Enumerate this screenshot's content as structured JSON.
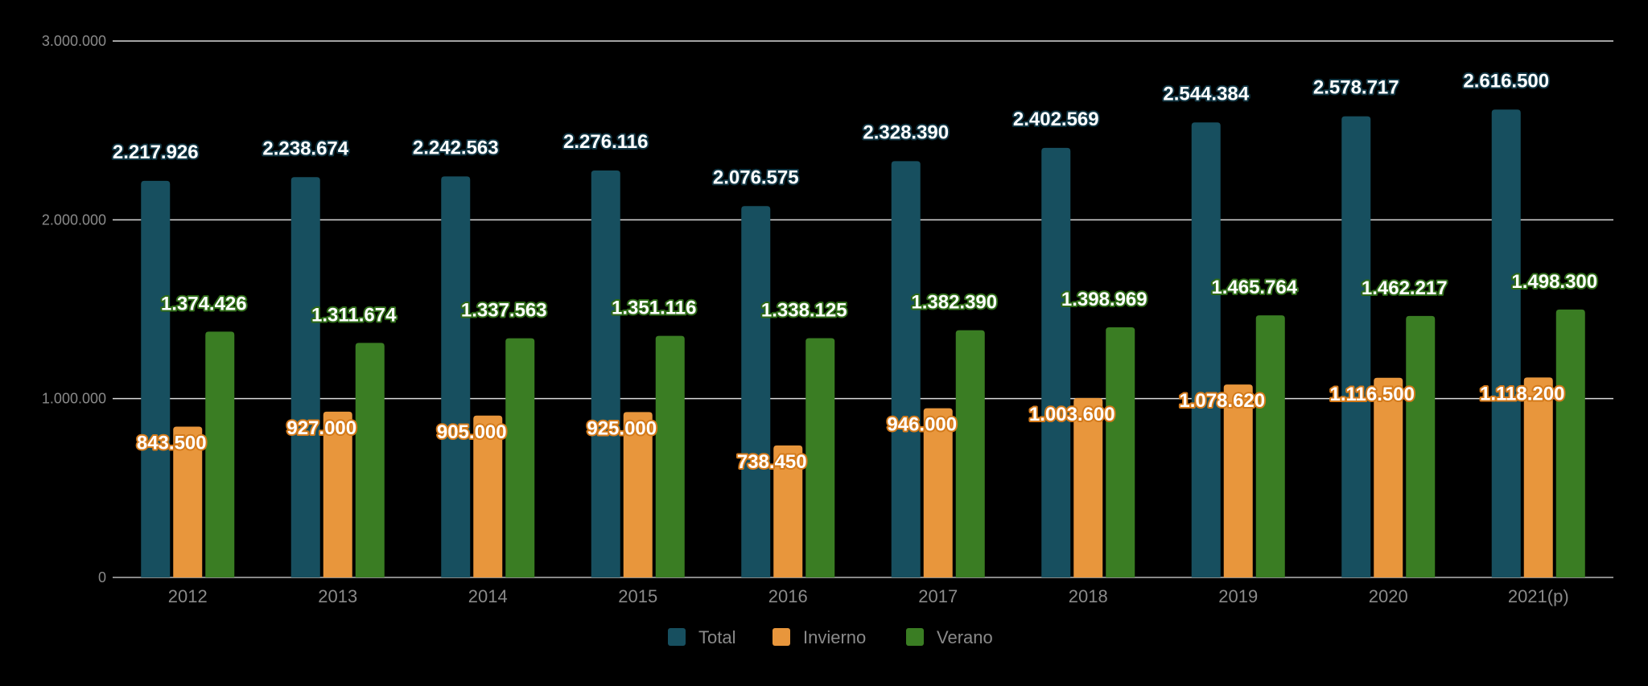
{
  "chart_data": {
    "type": "bar",
    "title": "",
    "xlabel": "",
    "ylabel": "",
    "ylim": [
      0,
      3000000
    ],
    "yticks": [
      0,
      1000000,
      2000000,
      3000000
    ],
    "ytick_labels": [
      "0",
      "1.000.000",
      "2.000.000",
      "3.000.000"
    ],
    "grid": true,
    "legend_position": "bottom",
    "categories": [
      "2012",
      "2013",
      "2014",
      "2015",
      "2016",
      "2017",
      "2018",
      "2019",
      "2020",
      "2021(p)"
    ],
    "series": [
      {
        "name": "Total",
        "color": "#174f5f",
        "label_fill": "#ffffff",
        "label_stroke": "#0f3340",
        "values": [
          2217926,
          2238674,
          2242563,
          2276116,
          2076575,
          2328390,
          2402569,
          2544384,
          2578717,
          2616500
        ],
        "labels": [
          "2.217.926",
          "2.238.674",
          "2.242.563",
          "2.276.116",
          "2.076.575",
          "2.328.390",
          "2.402.569",
          "2.544.384",
          "2.578.717",
          "2.616.500"
        ]
      },
      {
        "name": "Invierno",
        "color": "#e8963c",
        "label_fill": "#ffffff",
        "label_stroke": "#d47a1a",
        "values": [
          843500,
          927000,
          905000,
          925000,
          738450,
          946000,
          1003600,
          1078620,
          1116500,
          1118200
        ],
        "labels": [
          "843.500",
          "927.000",
          "905.000",
          "925.000",
          "738.450",
          "946.000",
          "1.003.600",
          "1.078.620",
          "1.116.500",
          "1.118.200"
        ]
      },
      {
        "name": "Verano",
        "color": "#3a7d23",
        "label_fill": "#ffffff",
        "label_stroke": "#2d6a17",
        "values": [
          1374426,
          1311674,
          1337563,
          1351116,
          1338125,
          1382390,
          1398969,
          1465764,
          1462217,
          1498300
        ],
        "labels": [
          "1.374.426",
          "1.311.674",
          "1.337.563",
          "1.351.116",
          "1.338.125",
          "1.382.390",
          "1.398.969",
          "1.465.764",
          "1.462.217",
          "1.498.300"
        ]
      }
    ]
  }
}
